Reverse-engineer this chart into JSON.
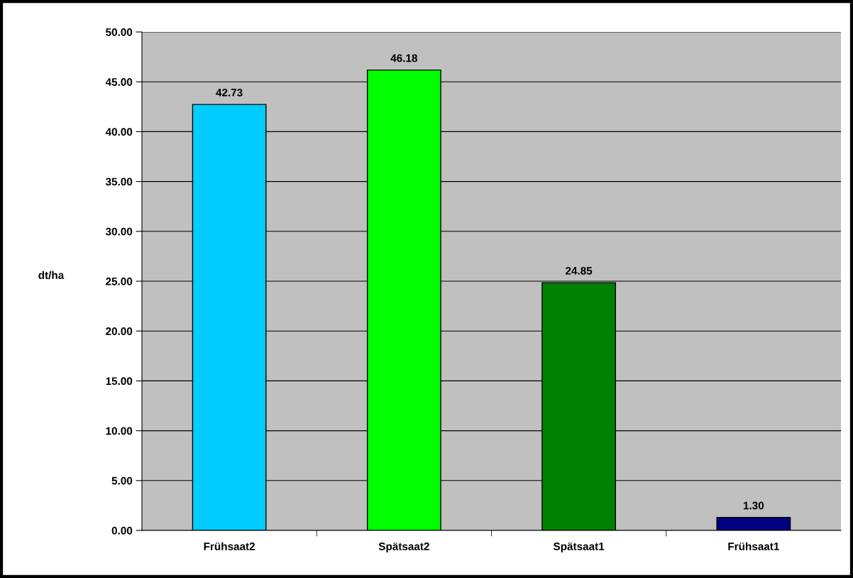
{
  "chart_data": {
    "type": "bar",
    "ylabel": "dt/ha",
    "categories": [
      "Frühsaat2",
      "Spätsaat2",
      "Spätsaat1",
      "Frühsaat1"
    ],
    "values": [
      42.73,
      46.18,
      24.85,
      1.3
    ],
    "colors": [
      "#00ccff",
      "#00ff00",
      "#008000",
      "#000080"
    ],
    "value_labels": [
      "42.73",
      "46.18",
      "24.85",
      "1.30"
    ],
    "ylim": [
      0,
      50
    ],
    "yticks": [
      {
        "value": 0,
        "label": "0.00"
      },
      {
        "value": 5,
        "label": "5.00"
      },
      {
        "value": 10,
        "label": "10.00"
      },
      {
        "value": 15,
        "label": "15.00"
      },
      {
        "value": 20,
        "label": "20.00"
      },
      {
        "value": 25,
        "label": "25.00"
      },
      {
        "value": 30,
        "label": "30.00"
      },
      {
        "value": 35,
        "label": "35.00"
      },
      {
        "value": 40,
        "label": "40.00"
      },
      {
        "value": 45,
        "label": "45.00"
      },
      {
        "value": 50,
        "label": "50.00"
      }
    ],
    "grid": "y",
    "legend": false
  }
}
